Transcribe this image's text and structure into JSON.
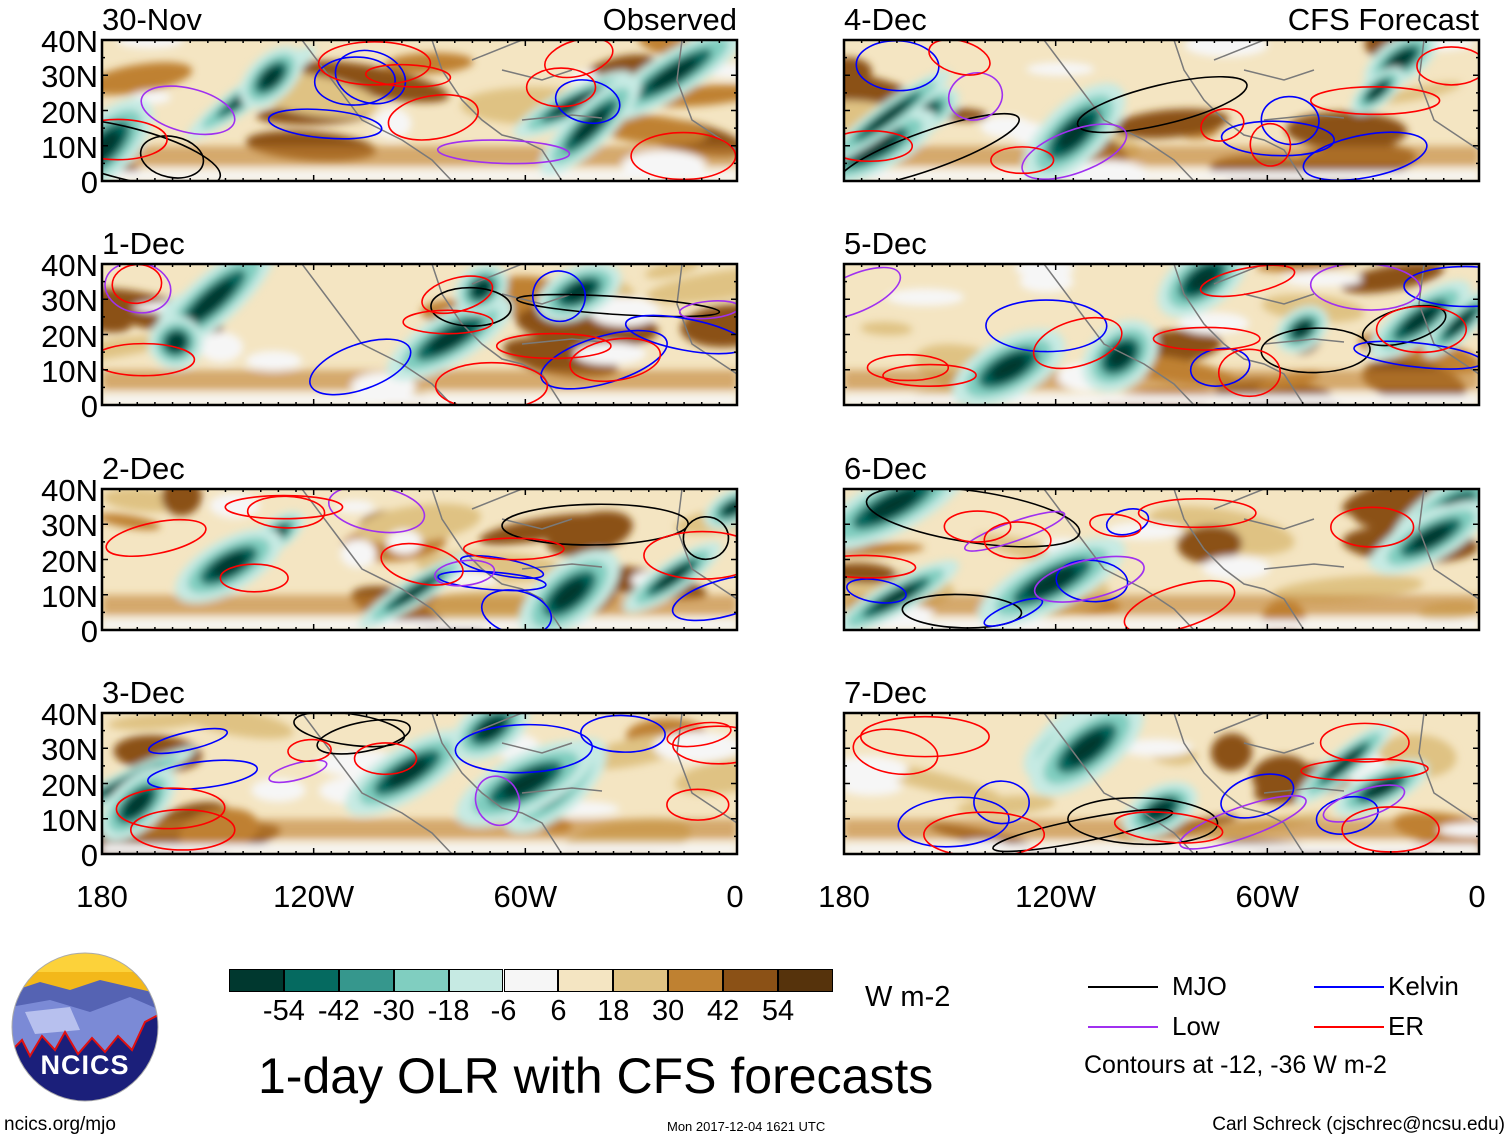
{
  "panels": [
    {
      "date": "30-Nov",
      "label": "Observed"
    },
    {
      "date": "1-Dec",
      "label": ""
    },
    {
      "date": "2-Dec",
      "label": ""
    },
    {
      "date": "3-Dec",
      "label": ""
    },
    {
      "date": "4-Dec",
      "label": "CFS Forecast"
    },
    {
      "date": "5-Dec",
      "label": ""
    },
    {
      "date": "6-Dec",
      "label": ""
    },
    {
      "date": "7-Dec",
      "label": ""
    }
  ],
  "lat_ticks": [
    "40N",
    "30N",
    "20N",
    "10N",
    "0"
  ],
  "lon_ticks": [
    "180",
    "120W",
    "60W",
    "0"
  ],
  "colorbar": {
    "labels": [
      "-54",
      "-42",
      "-30",
      "-18",
      "-6",
      "6",
      "18",
      "30",
      "42",
      "54"
    ],
    "colors": [
      "#00382f",
      "#056a60",
      "#36978d",
      "#80cec0",
      "#c6eae3",
      "#f6f6f6",
      "#f4e5c2",
      "#dfc283",
      "#bf8131",
      "#8b5116",
      "#56330c"
    ],
    "units": "W m-2"
  },
  "legend": {
    "items": [
      {
        "label": "MJO",
        "color": "#000000"
      },
      {
        "label": "Kelvin",
        "color": "#0000ff"
      },
      {
        "label": "Low",
        "color": "#a030f0"
      },
      {
        "label": "ER",
        "color": "#ff0000"
      }
    ],
    "note": "Contours at -12, -36 W m-2"
  },
  "title": "1-day OLR with CFS forecasts",
  "logo_text": "NCICS",
  "footer": {
    "url": "ncics.org/mjo",
    "timestamp": "Mon 2017-12-04 1621 UTC",
    "author": "Carl Schreck (cjschrec@ncsu.edu)"
  }
}
